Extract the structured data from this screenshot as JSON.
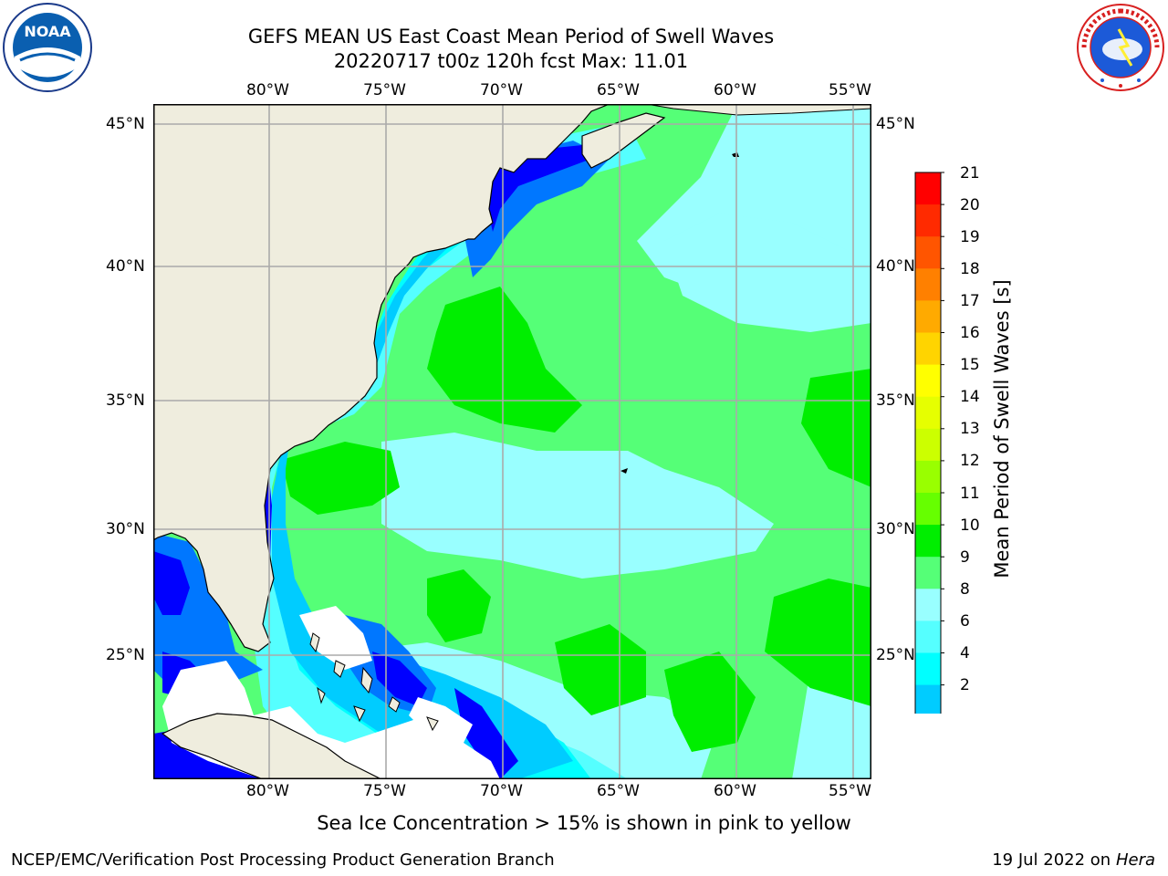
{
  "title": {
    "line1": "GEFS MEAN US East Coast Mean Period of Swell Waves",
    "line2": "20220717 t00z 120h fcst   Max: 11.01"
  },
  "map": {
    "lon_labels": [
      "80°W",
      "75°W",
      "70°W",
      "65°W",
      "60°W",
      "55°W"
    ],
    "lat_labels": [
      "45°N",
      "40°N",
      "35°N",
      "30°N",
      "25°N"
    ]
  },
  "colorbar": {
    "label": "Mean Period of Swell Waves [s]",
    "ticks": [
      "21",
      "20",
      "19",
      "18",
      "17",
      "16",
      "15",
      "14",
      "13",
      "12",
      "11",
      "10",
      "9",
      "8",
      "6",
      "4",
      "2"
    ],
    "colors": [
      "#ff0000",
      "#ff2a00",
      "#ff5500",
      "#ff8000",
      "#ffaa00",
      "#ffd400",
      "#ffff00",
      "#e6ff00",
      "#ccff00",
      "#99ff00",
      "#66ff00",
      "#00ee00",
      "#55ff77",
      "#99ffff",
      "#55ffff",
      "#00ffff",
      "#00ccff",
      "#0077ff",
      "#0000ff"
    ]
  },
  "note": "Sea Ice Concentration > 15% is shown in pink to yellow",
  "footer": {
    "left": "NCEP/EMC/Verification Post Processing Product Generation Branch",
    "date": "19 Jul 2022 on ",
    "machine": "Hera"
  },
  "logos": {
    "noaa": "NOAA",
    "nws": "NATIONAL WEATHER SERVICE"
  }
}
